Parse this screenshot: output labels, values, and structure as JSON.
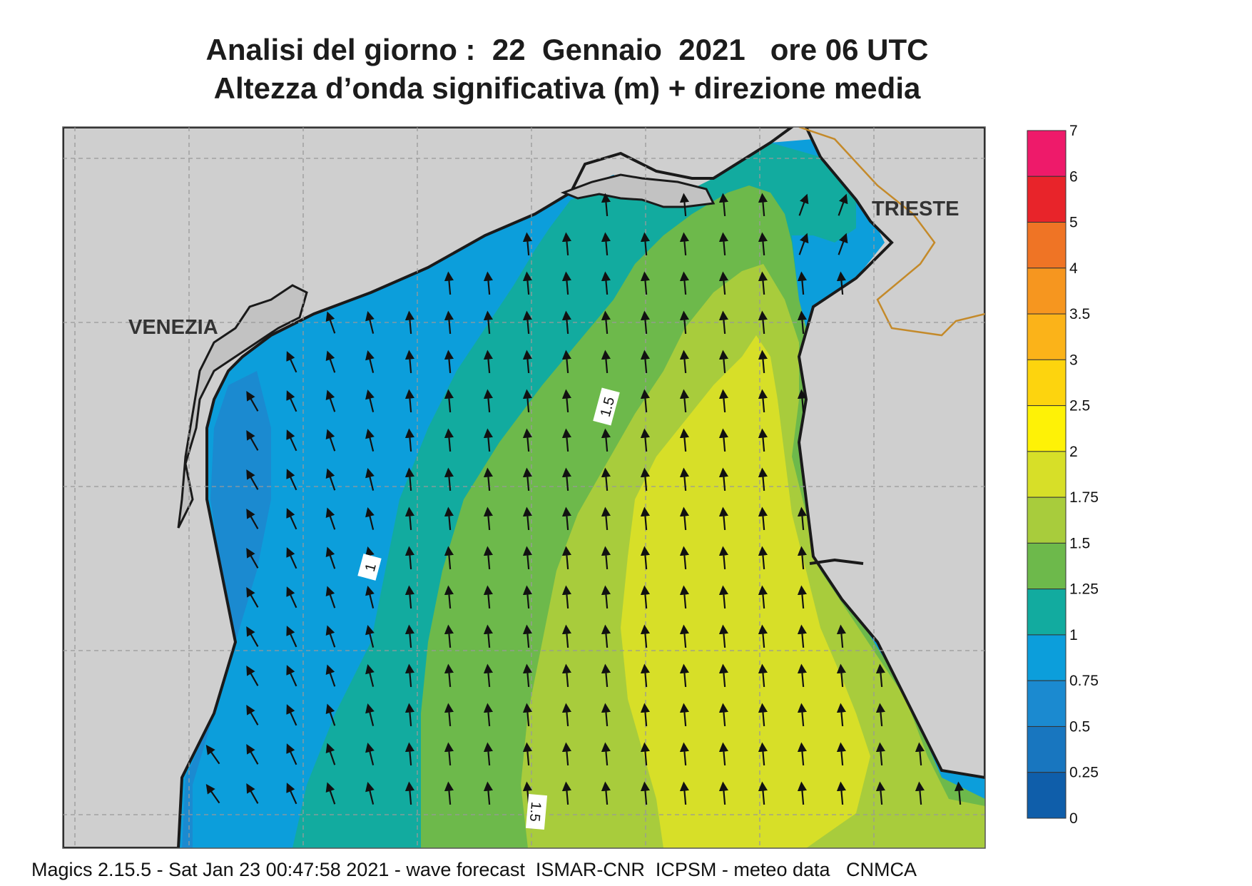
{
  "title": {
    "line1": "Analisi del giorno :  22  Gennaio  2021   ore 06 UTC",
    "line2": "Altezza d’onda significativa (m) + direzione media"
  },
  "places": {
    "venezia": "VENEZIA",
    "trieste": "TRIESTE"
  },
  "contour_labels": {
    "c1": "1",
    "c15a": "1.5",
    "c15b": "1.5"
  },
  "legend": {
    "levels": [
      "7",
      "6",
      "5",
      "4",
      "3.5",
      "3",
      "2.5",
      "2",
      "1.75",
      "1.5",
      "1.25",
      "1",
      "0.75",
      "0.5",
      "0.25",
      "0"
    ],
    "colors": [
      "#ee1a6a",
      "#e8242a",
      "#ef7425",
      "#f6961f",
      "#fbb319",
      "#fdd40e",
      "#fef206",
      "#d7df28",
      "#a8cc3c",
      "#6db94b",
      "#12ab9f",
      "#0c9edb",
      "#1b8ad0",
      "#1876bf",
      "#0f5eaa"
    ]
  },
  "map_colors": {
    "land": "#cfcfcf",
    "sea_outer": "#c9c9c9",
    "coast": "#1a1a1a",
    "border": "#c48a2a"
  },
  "footer": "Magics 2.15.5 - Sat Jan 23 00:47:58 2021 - wave forecast  ISMAR-CNR  ICPSM - meteo data   CNMCA"
}
